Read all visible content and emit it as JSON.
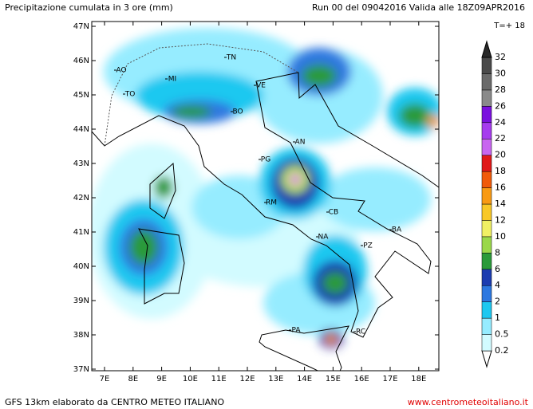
{
  "header": {
    "title": "Precipitazione cumulata in 3 ore (mm)",
    "run": "Run 00 del 09042016  Valida alle 18Z09APR2016",
    "step": "T=+ 18"
  },
  "map": {
    "lat_labels": [
      "47N",
      "46N",
      "45N",
      "44N",
      "43N",
      "42N",
      "41N",
      "40N",
      "39N",
      "38N",
      "37N"
    ],
    "lon_labels": [
      "7E",
      "8E",
      "9E",
      "10E",
      "11E",
      "12E",
      "13E",
      "14E",
      "15E",
      "16E",
      "17E",
      "18E"
    ],
    "cities": [
      "AO",
      "TO",
      "MI",
      "TN",
      "VE",
      "BO",
      "PG",
      "AN",
      "RM",
      "CB",
      "NA",
      "PZ",
      "BA",
      "PA",
      "RC"
    ]
  },
  "legend": {
    "levels": [
      0.2,
      0.5,
      1,
      2,
      4,
      6,
      8,
      10,
      12,
      14,
      16,
      18,
      20,
      22,
      24,
      26,
      28,
      30,
      32
    ],
    "colors": [
      "#d2fbff",
      "#96ecff",
      "#1ec8f0",
      "#2d78e0",
      "#1c3cb0",
      "#2a9a3a",
      "#9ad84a",
      "#f0f064",
      "#f8c828",
      "#f89a14",
      "#f05a0a",
      "#e01818",
      "#c866f0",
      "#a63cee",
      "#7a10de",
      "#8a8a8a",
      "#6a6a6a",
      "#4a4a4a",
      "#282828"
    ]
  },
  "footer": {
    "model": "GFS 13km elaborato da CENTRO METEO ITALIANO",
    "site": "www.centrometeoitaliano.it"
  }
}
